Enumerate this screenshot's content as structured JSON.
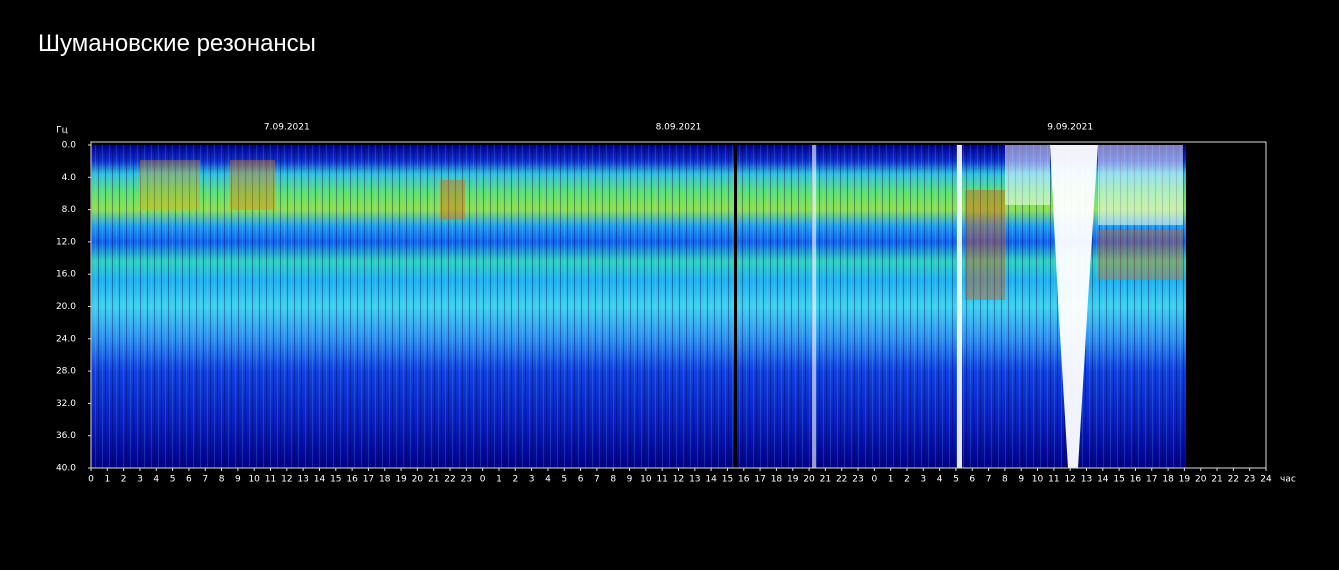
{
  "chart_data": {
    "type": "spectrogram",
    "title": "Шумановские резонансы",
    "y_label": "Гц",
    "x_label": "час",
    "date_labels": [
      "7.09.2021",
      "8.09.2021",
      "9.09.2021"
    ],
    "xlim": [
      0,
      72
    ],
    "ylim": [
      40,
      0
    ],
    "xticks": [
      0,
      1,
      2,
      3,
      4,
      5,
      6,
      7,
      8,
      9,
      10,
      11,
      12,
      13,
      14,
      15,
      16,
      17,
      18,
      19,
      20,
      21,
      22,
      23,
      {
        "value": 24,
        "label": "0"
      },
      {
        "value": 25,
        "label": "1"
      },
      {
        "value": 26,
        "label": "2"
      },
      {
        "value": 27,
        "label": "3"
      },
      {
        "value": 28,
        "label": "4"
      },
      {
        "value": 29,
        "label": "5"
      },
      {
        "value": 30,
        "label": "6"
      },
      {
        "value": 31,
        "label": "7"
      },
      {
        "value": 32,
        "label": "8"
      },
      {
        "value": 33,
        "label": "9"
      },
      {
        "value": 34,
        "label": "10"
      },
      {
        "value": 35,
        "label": "11"
      },
      {
        "value": 36,
        "label": "12"
      },
      {
        "value": 37,
        "label": "13"
      },
      {
        "value": 38,
        "label": "14"
      },
      {
        "value": 39,
        "label": "15"
      },
      {
        "value": 40,
        "label": "16"
      },
      {
        "value": 41,
        "label": "17"
      },
      {
        "value": 42,
        "label": "18"
      },
      {
        "value": 43,
        "label": "19"
      },
      {
        "value": 44,
        "label": "20"
      },
      {
        "value": 45,
        "label": "21"
      },
      {
        "value": 46,
        "label": "22"
      },
      {
        "value": 47,
        "label": "23"
      },
      {
        "value": 48,
        "label": "0"
      },
      {
        "value": 49,
        "label": "1"
      },
      {
        "value": 50,
        "label": "2"
      },
      {
        "value": 51,
        "label": "3"
      },
      {
        "value": 52,
        "label": "4"
      },
      {
        "value": 53,
        "label": "5"
      },
      {
        "value": 54,
        "label": "6"
      },
      {
        "value": 55,
        "label": "7"
      },
      {
        "value": 56,
        "label": "8"
      },
      {
        "value": 57,
        "label": "9"
      },
      {
        "value": 58,
        "label": "10"
      },
      {
        "value": 59,
        "label": "11"
      },
      {
        "value": 60,
        "label": "12"
      },
      {
        "value": 61,
        "label": "13"
      },
      {
        "value": 62,
        "label": "14"
      },
      {
        "value": 63,
        "label": "15"
      },
      {
        "value": 64,
        "label": "16"
      },
      {
        "value": 65,
        "label": "17"
      },
      {
        "value": 66,
        "label": "18"
      },
      {
        "value": 67,
        "label": "19"
      },
      {
        "value": 68,
        "label": "20"
      },
      {
        "value": 69,
        "label": "21"
      },
      {
        "value": 70,
        "label": "22"
      },
      {
        "value": 71,
        "label": "23"
      },
      {
        "value": 72,
        "label": "24"
      }
    ],
    "yticks": [
      {
        "value": 0,
        "label": "0.0"
      },
      {
        "value": 4,
        "label": "4.0"
      },
      {
        "value": 8,
        "label": "8.0"
      },
      {
        "value": 12,
        "label": "12.0"
      },
      {
        "value": 16,
        "label": "16.0"
      },
      {
        "value": 20,
        "label": "20.0"
      },
      {
        "value": 24,
        "label": "24.0"
      },
      {
        "value": 28,
        "label": "28.0"
      },
      {
        "value": 32,
        "label": "32.0"
      },
      {
        "value": 36,
        "label": "36.0"
      },
      {
        "value": 40,
        "label": "40.0"
      }
    ]
  }
}
